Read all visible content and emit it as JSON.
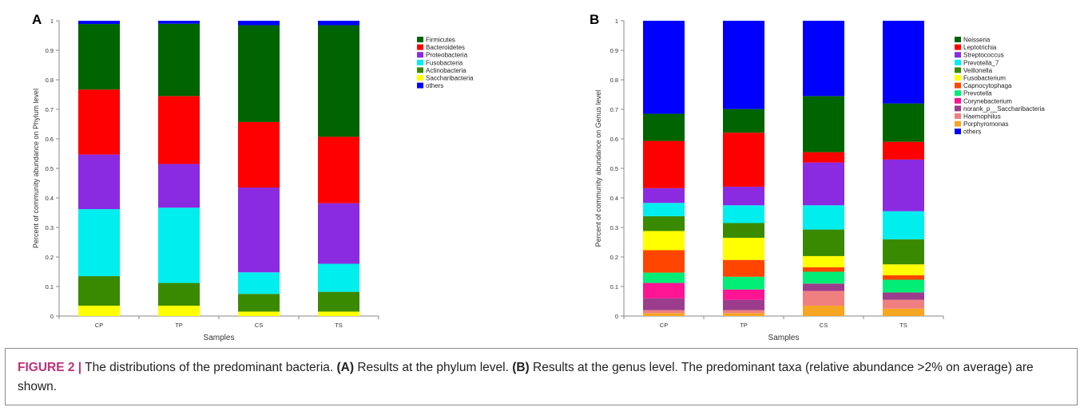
{
  "chart_data": [
    {
      "panel_label": "A",
      "type": "bar",
      "stacked": true,
      "categories": [
        "CP",
        "TP",
        "CS",
        "TS"
      ],
      "xlabel": "Samples",
      "ylabel": "Percent of community abundance on Phylum level",
      "ylim": [
        0,
        1
      ],
      "yticks": [
        "0",
        "0.1",
        "0.2",
        "0.3",
        "0.4",
        "0.5",
        "0.6",
        "0.7",
        "0.8",
        "0.9",
        "1"
      ],
      "legend_position": "right",
      "series": [
        {
          "name": "Saccharibacteria",
          "color": "#ffff00",
          "values": [
            0.035,
            0.035,
            0.015,
            0.015
          ]
        },
        {
          "name": "Actinobacteria",
          "color": "#3a8a00",
          "values": [
            0.1,
            0.077,
            0.06,
            0.067
          ]
        },
        {
          "name": "Fusobacteria",
          "color": "#00eeee",
          "values": [
            0.227,
            0.255,
            0.073,
            0.095
          ]
        },
        {
          "name": "Proteobacteria",
          "color": "#8a2be2",
          "values": [
            0.185,
            0.148,
            0.287,
            0.205
          ]
        },
        {
          "name": "Bacteroidetes",
          "color": "#ff0000",
          "values": [
            0.22,
            0.23,
            0.222,
            0.225
          ]
        },
        {
          "name": "Firmicutes",
          "color": "#006400",
          "values": [
            0.222,
            0.245,
            0.328,
            0.378
          ]
        },
        {
          "name": "others",
          "color": "#0000ff",
          "values": [
            0.011,
            0.01,
            0.015,
            0.015
          ]
        }
      ],
      "legend_order": [
        "Firmicutes",
        "Bacteroidetes",
        "Proteobacteria",
        "Fusobacteria",
        "Actinobacteria",
        "Saccharibacteria",
        "others"
      ]
    },
    {
      "panel_label": "B",
      "type": "bar",
      "stacked": true,
      "categories": [
        "CP",
        "TP",
        "CS",
        "TS"
      ],
      "xlabel": "Samples",
      "ylabel": "Percent of community abundance on Genus level",
      "ylim": [
        0,
        1
      ],
      "yticks": [
        "0",
        "0.1",
        "0.2",
        "0.3",
        "0.4",
        "0.5",
        "0.6",
        "0.7",
        "0.8",
        "0.9",
        "1"
      ],
      "legend_position": "right",
      "series": [
        {
          "name": "Porphyromonas",
          "color": "#f5a623",
          "values": [
            0.01,
            0.01,
            0.035,
            0.025
          ]
        },
        {
          "name": "Haemophilus",
          "color": "#f08080",
          "values": [
            0.01,
            0.01,
            0.05,
            0.03
          ]
        },
        {
          "name": "norank_p__Saccharibacteria",
          "color": "#9b3d8c",
          "values": [
            0.04,
            0.035,
            0.025,
            0.025
          ]
        },
        {
          "name": "Corynebacterium",
          "color": "#ff1493",
          "values": [
            0.052,
            0.035,
            0.0,
            0.0
          ]
        },
        {
          "name": "Prevotella",
          "color": "#00ee76",
          "values": [
            0.035,
            0.043,
            0.04,
            0.043
          ]
        },
        {
          "name": "Capnocytophaga",
          "color": "#ff4500",
          "values": [
            0.076,
            0.057,
            0.015,
            0.015
          ]
        },
        {
          "name": "Fusobacterium",
          "color": "#ffff00",
          "values": [
            0.065,
            0.075,
            0.038,
            0.037
          ]
        },
        {
          "name": "Veillonella",
          "color": "#3a8a00",
          "values": [
            0.05,
            0.05,
            0.09,
            0.085
          ]
        },
        {
          "name": "Prevotella_7",
          "color": "#00eeee",
          "values": [
            0.045,
            0.06,
            0.082,
            0.095
          ]
        },
        {
          "name": "Streptococcus",
          "color": "#8a2be2",
          "values": [
            0.05,
            0.063,
            0.145,
            0.175
          ]
        },
        {
          "name": "Leptotrichia",
          "color": "#ff0000",
          "values": [
            0.16,
            0.183,
            0.035,
            0.06
          ]
        },
        {
          "name": "Neisseria",
          "color": "#006400",
          "values": [
            0.092,
            0.08,
            0.19,
            0.13
          ]
        },
        {
          "name": "others",
          "color": "#0000ff",
          "values": [
            0.315,
            0.299,
            0.255,
            0.28
          ]
        }
      ],
      "legend_order": [
        "Neisseria",
        "Leptotrichia",
        "Streptococcus",
        "Prevotella_7",
        "Veillonella",
        "Fusobacterium",
        "Capnocytophaga",
        "Prevotella",
        "Corynebacterium",
        "norank_p__Saccharibacteria",
        "Haemophilus",
        "Porphyromonas",
        "others"
      ]
    }
  ],
  "caption": {
    "figure_label": "FIGURE 2 |",
    "text_1": " The distributions of the predominant bacteria. ",
    "a_label": "(A)",
    "text_2": " Results at the phylum level. ",
    "b_label": "(B)",
    "text_3": " Results at the genus level. The predominant taxa (relative abundance >2% on average) are shown."
  }
}
